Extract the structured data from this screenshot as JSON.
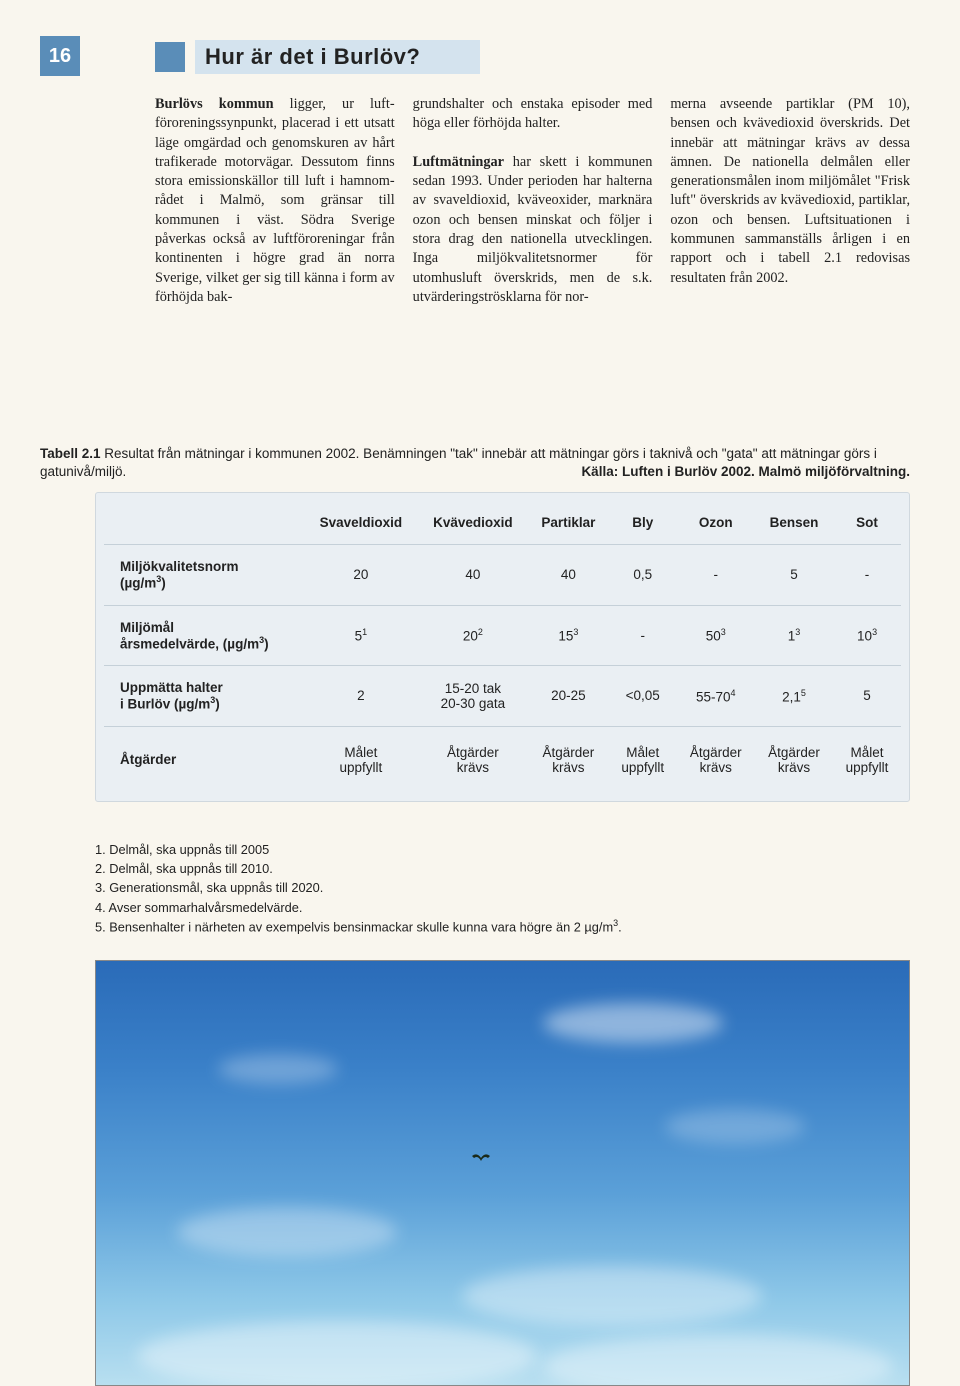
{
  "page_number": "16",
  "title": "Hur är det i Burlöv?",
  "columns": {
    "c1": "<b>Burlövs kommun</b> ligger, ur luft­förorenings­synpunkt, placerad i ett utsatt läge omgärdad och genomskuren av hårt trafikerade motorvägar. Dessutom finns stora emissionskällor till luft i hamnom­rådet i Malmö, som gränsar till kommunen i väst. Södra Sverige påverkas också av luftföroreningar från kontinenten i högre grad än norra Sverige, vilket ger sig till känna i form av förhöjda bak-",
    "c2": "grundshalter och enstaka episoder med höga eller förhöjda halter.<br><br><b>Luftmätningar</b> har skett i kom­munen sedan 1993. Under perio­den har halterna av svaveldioxid, kväveoxider, marknära ozon och bensen minskat och följer i stora drag den nationella utvecklingen. Inga miljökvalitetsnormer för utomhusluft överskrids, men de s.k. utvärderingströsklarna för nor-",
    "c3": "merna avseende partiklar (PM 10), bensen och kvävedioxid över­skrids. Det innebär att mätningar krävs av dessa ämnen. De natio­nella delmålen eller genera­tionsmålen inom miljömålet \"Frisk luft\" överskrids av kvävedi­oxid, partiklar, ozon och bensen. Luftsituationen i kommunen sam­manställs årligen i en rapport och i tabell 2.1 redovisas resultaten från 2002."
  },
  "table_caption": {
    "label": "Tabell 2.1",
    "text": "Resultat från mätningar i kommunen 2002. Benämningen \"tak\" innebär att mätningar görs i taknivå och \"gata\" att mätningar görs i gatunivå/miljö.",
    "source": "Källa: Luften i Burlöv 2002. Malmö miljöförvaltning."
  },
  "table": {
    "headers": [
      "",
      "Svavel­dioxid",
      "Kväve­dioxid",
      "Partiklar",
      "Bly",
      "Ozon",
      "Bensen",
      "Sot"
    ],
    "rows": [
      {
        "label": "Miljökvalitetsnorm<br>(µg/m<sup>3</sup>)",
        "cells": [
          "20",
          "40",
          "40",
          "0,5",
          "-",
          "5",
          "-"
        ]
      },
      {
        "label": "Miljömål<br>årsmedelvärde, (µg/m<sup>3</sup>)",
        "cells": [
          "5<sup>1</sup>",
          "20<sup>2</sup>",
          "15<sup>3</sup>",
          "-",
          "50<sup>3</sup>",
          "1<sup>3</sup>",
          "10<sup>3</sup>"
        ]
      },
      {
        "label": "Uppmätta halter<br>i Burlöv (µg/m<sup>3</sup>)",
        "cells": [
          "2",
          "15-20 tak<br>20-30 gata",
          "20-25",
          "<0,05",
          "55-70<sup>4</sup>",
          "2,1<sup>5</sup>",
          "5"
        ]
      },
      {
        "label": "Åtgärder",
        "cells": [
          "Målet<br>uppfyllt",
          "Åtgärder<br>krävs",
          "Åtgärder<br>krävs",
          "Målet<br>uppfyllt",
          "Åtgärder<br>krävs",
          "Åtgärder<br>krävs",
          "Målet<br>uppfyllt"
        ]
      }
    ]
  },
  "footnotes": [
    "1. Delmål, ska uppnås till 2005",
    "2. Delmål, ska uppnås till 2010.",
    "3. Generationsmål, ska uppnås till 2020.",
    "4. Avser sommarhalvårsmedelvärde.",
    "5. Bensenhalter i närheten av exempelvis bensinmackar skulle kunna vara högre än 2 µg/m<sup>3</sup>."
  ],
  "colors": {
    "page_bg": "#f9f6ee",
    "accent_blue": "#5a8db8",
    "title_bg": "#d4e3ee",
    "table_bg": "#eaeff3",
    "table_border": "#c5d0d8"
  },
  "photo": {
    "description": "sky with clouds and a distant bird",
    "gradient_top": "#2a6bb8",
    "gradient_bottom": "#b8dff0"
  }
}
